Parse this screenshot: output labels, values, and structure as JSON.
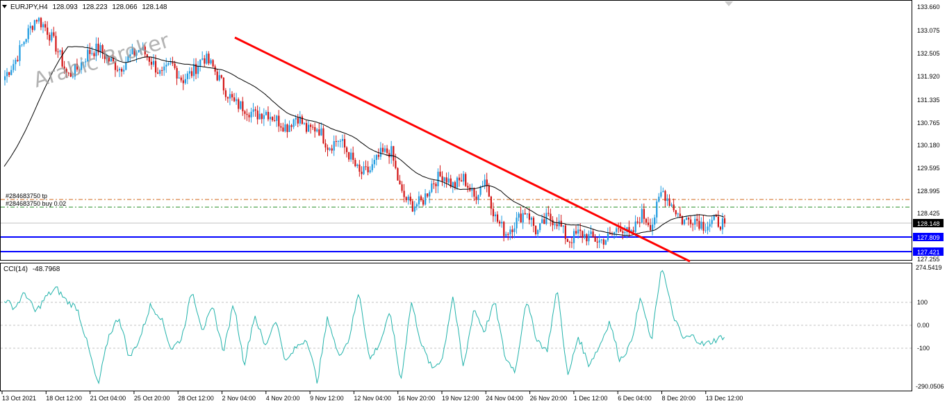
{
  "header": {
    "symbol": "EURJPY,H4",
    "open": "128.093",
    "high": "128.223",
    "low": "128.066",
    "close": "128.148"
  },
  "watermark": "Arabic Broker",
  "indicator": {
    "name": "CCI(14)",
    "value": "-48.7968"
  },
  "price_axis": {
    "ticks": [
      "133.660",
      "133.075",
      "132.505",
      "131.920",
      "131.335",
      "130.765",
      "130.180",
      "129.595",
      "128.995",
      "128.425",
      "127.255"
    ],
    "current": "128.148",
    "level_1": "127.809",
    "level_2": "127.421"
  },
  "cci_axis": {
    "ticks": [
      "274.5419",
      "100",
      "0.00",
      "-100",
      "-290.0506"
    ]
  },
  "time_axis": {
    "labels": [
      "13 Oct 2021",
      "18 Oct 12:00",
      "21 Oct 04:00",
      "25 Oct 20:00",
      "28 Oct 12:00",
      "2 Nov 04:00",
      "4 Nov 20:00",
      "9 Nov 12:00",
      "12 Nov 04:00",
      "16 Nov 20:00",
      "19 Nov 12:00",
      "24 Nov 04:00",
      "26 Nov 20:00",
      "1 Dec 12:00",
      "6 Dec 04:00",
      "8 Dec 20:00",
      "13 Dec 12:00"
    ]
  },
  "order_lines": {
    "tp": "#284683750 tp",
    "buy": "#284683750 buy 0.02"
  },
  "colors": {
    "bull": "#1e9be0",
    "bear": "#d21414",
    "trend": "#ff0000",
    "level": "#0000ff",
    "cci": "#20b2aa",
    "ma": "#000000"
  },
  "chart_data": [
    {
      "type": "candlestick",
      "series_name": "EURJPY,H4",
      "ylim": [
        127.255,
        133.66
      ],
      "x": [
        "13 Oct 2021",
        "18 Oct 12:00",
        "21 Oct 04:00",
        "25 Oct 20:00",
        "28 Oct 12:00",
        "2 Nov 04:00",
        "4 Nov 20:00",
        "9 Nov 12:00",
        "12 Nov 04:00",
        "16 Nov 20:00",
        "19 Nov 12:00",
        "24 Nov 04:00",
        "26 Nov 20:00",
        "1 Dec 12:00",
        "6 Dec 04:00",
        "8 Dec 20:00",
        "13 Dec 12:00"
      ],
      "close_path": [
        131.9,
        132.3,
        132.9,
        133.4,
        133.1,
        132.6,
        131.9,
        132.1,
        132.5,
        132.6,
        132.3,
        132.1,
        132.4,
        132.6,
        132.3,
        131.9,
        132.2,
        131.8,
        132.0,
        132.4,
        132.1,
        131.6,
        131.2,
        131.1,
        130.9,
        131.0,
        130.8,
        130.6,
        130.9,
        130.5,
        130.6,
        130.1,
        130.3,
        129.9,
        129.4,
        129.5,
        129.9,
        130.0,
        128.9,
        128.6,
        128.7,
        129.2,
        129.4,
        129.1,
        129.3,
        128.8,
        129.3,
        128.3,
        127.9,
        128.2,
        128.5,
        127.9,
        128.3,
        128.2,
        127.7,
        127.9,
        127.8,
        127.7,
        127.8,
        128.1,
        127.8,
        128.4,
        128.1,
        129.0,
        128.6,
        128.2,
        128.3,
        128.1,
        128.2,
        128.148
      ],
      "moving_average": true,
      "trendline": {
        "from": [
          "2 Nov 04:00",
          132.95
        ],
        "to": [
          "8 Dec 20:00",
          127.25
        ]
      },
      "horizontal_levels": [
        127.809,
        127.421,
        128.148,
        128.7,
        128.5
      ]
    },
    {
      "type": "line",
      "series_name": "CCI(14)",
      "ylim": [
        -290.0506,
        274.5419
      ],
      "reference_lines": [
        100,
        0,
        -100
      ],
      "values": [
        120,
        80,
        150,
        60,
        130,
        170,
        110,
        80,
        -90,
        -280,
        -50,
        40,
        -150,
        -60,
        90,
        40,
        -110,
        -60,
        160,
        -20,
        80,
        -120,
        100,
        -180,
        50,
        -100,
        30,
        -170,
        -100,
        -60,
        -260,
        40,
        -140,
        -70,
        160,
        -160,
        -80,
        60,
        -260,
        110,
        -90,
        -200,
        -150,
        140,
        -200,
        80,
        -30,
        110,
        -150,
        -210,
        120,
        -60,
        -120,
        170,
        -240,
        -50,
        -180,
        -100,
        20,
        -160,
        -90,
        130,
        -80,
        280,
        60,
        -60,
        -50,
        -90,
        -70,
        -48.8
      ]
    }
  ]
}
